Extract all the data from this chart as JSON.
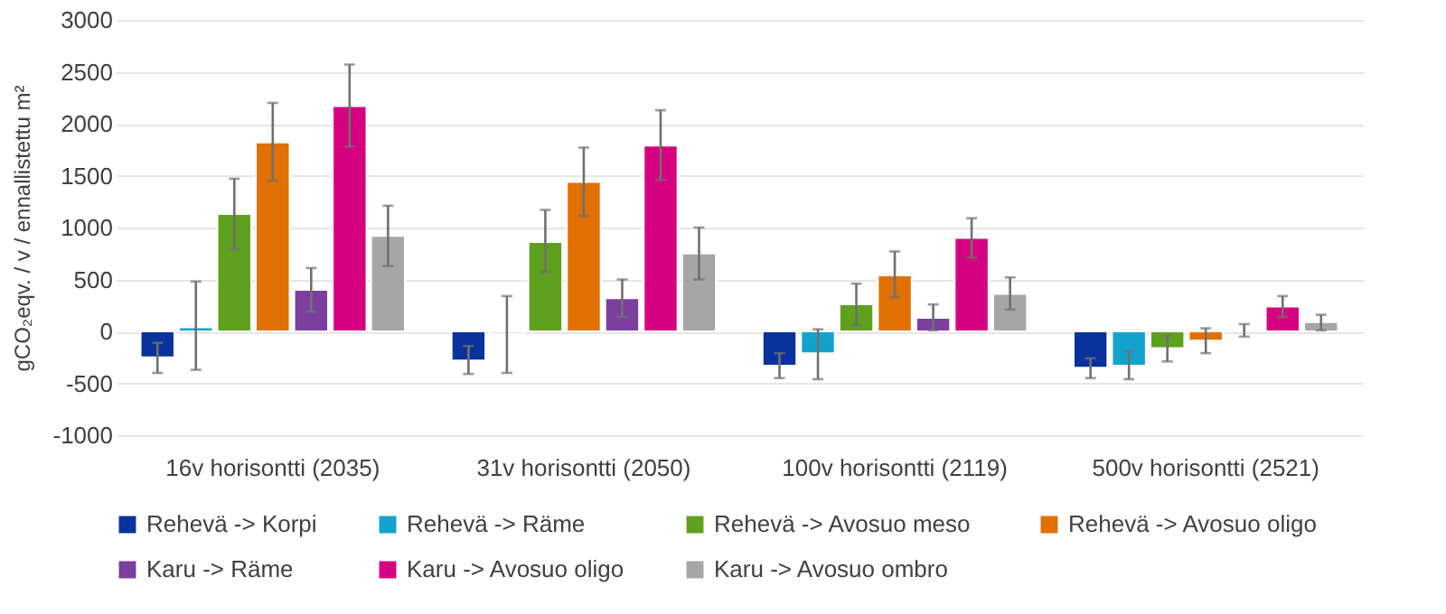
{
  "chart_data": {
    "type": "bar",
    "ylabel": "gCO₂eqv. / v / ennallistettu m²",
    "categories": [
      "16v horisontti (2035)",
      "31v horisontti (2050)",
      "100v horisontti (2119)",
      "500v horisontti (2521)"
    ],
    "series": [
      {
        "name": "Rehevä -> Korpi",
        "color": "#0a329c",
        "values": [
          -250,
          -280,
          -330,
          -350
        ],
        "errors": [
          [
            -400,
            -110
          ],
          [
            -410,
            -140
          ],
          [
            -450,
            -210
          ],
          [
            -450,
            -260
          ]
        ]
      },
      {
        "name": "Rehevä ->  Räme",
        "color": "#11a3cc",
        "values": [
          40,
          -20,
          -210,
          -330
        ],
        "errors": [
          [
            -370,
            480
          ],
          [
            -400,
            340
          ],
          [
            -460,
            20
          ],
          [
            -460,
            -190
          ]
        ]
      },
      {
        "name": "Rehevä ->  Avosuo meso",
        "color": "#5fa11e",
        "values": [
          1130,
          860,
          260,
          -160
        ],
        "errors": [
          [
            790,
            1470
          ],
          [
            570,
            1170
          ],
          [
            60,
            460
          ],
          [
            -290,
            -40
          ]
        ]
      },
      {
        "name": "Rehevä ->  Avosuo oligo",
        "color": "#e07000",
        "values": [
          1820,
          1440,
          540,
          -90
        ],
        "errors": [
          [
            1450,
            2200
          ],
          [
            1110,
            1770
          ],
          [
            330,
            770
          ],
          [
            -210,
            30
          ]
        ]
      },
      {
        "name": "Karu -> Räme",
        "color": "#7b3f9e",
        "values": [
          400,
          320,
          130,
          10
        ],
        "errors": [
          [
            190,
            610
          ],
          [
            140,
            500
          ],
          [
            10,
            260
          ],
          [
            -50,
            70
          ]
        ]
      },
      {
        "name": "Karu -> Avosuo oligo",
        "color": "#d4007f",
        "values": [
          2170,
          1790,
          900,
          240
        ],
        "errors": [
          [
            1780,
            2570
          ],
          [
            1460,
            2130
          ],
          [
            710,
            1090
          ],
          [
            140,
            340
          ]
        ]
      },
      {
        "name": "Karu -> Avosuo ombro",
        "color": "#a6a6a6",
        "values": [
          920,
          750,
          360,
          90
        ],
        "errors": [
          [
            630,
            1210
          ],
          [
            500,
            1000
          ],
          [
            210,
            520
          ],
          [
            10,
            160
          ]
        ]
      }
    ],
    "ylim": [
      -1000,
      3000
    ],
    "yticks": [
      -1000,
      -500,
      0,
      500,
      1000,
      1500,
      2000,
      2500,
      3000
    ],
    "grid": "y",
    "legend": "bottom"
  }
}
